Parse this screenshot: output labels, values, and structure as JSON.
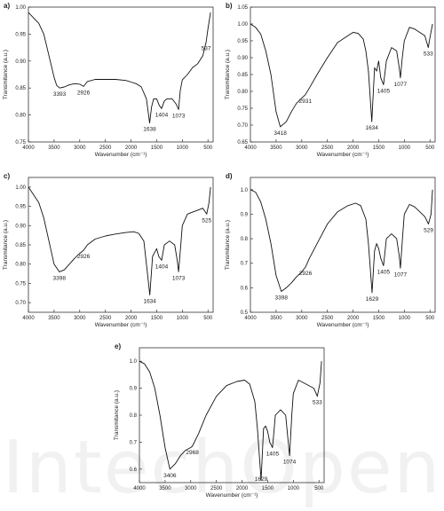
{
  "watermark_text": "IntechOpen",
  "chart_data": [
    {
      "type": "line",
      "panel_label": "a)",
      "xlabel": "Wavenumber (cm⁻¹)",
      "ylabel": "Transmitance (a.u.)",
      "xlim": [
        4000,
        400
      ],
      "ylim": [
        0.75,
        1.0
      ],
      "x_ticks": [
        4000,
        3500,
        3000,
        2500,
        2000,
        1500,
        1000,
        500
      ],
      "y_ticks": [
        0.75,
        0.8,
        0.85,
        0.9,
        0.95,
        1.0
      ],
      "y_tick_labels": [
        "0.75",
        "0.80",
        "0.85",
        "0.90",
        "0.95",
        "1.00"
      ],
      "series": [
        {
          "x": [
            4000,
            3900,
            3800,
            3700,
            3600,
            3500,
            3450,
            3393,
            3300,
            3200,
            3100,
            3000,
            2926,
            2850,
            2700,
            2500,
            2300,
            2100,
            2000,
            1900,
            1800,
            1700,
            1638,
            1600,
            1560,
            1500,
            1450,
            1404,
            1350,
            1300,
            1200,
            1120,
            1073,
            1040,
            1000,
            900,
            800,
            700,
            600,
            537,
            500,
            450
          ],
          "y": [
            0.99,
            0.98,
            0.97,
            0.95,
            0.91,
            0.87,
            0.855,
            0.85,
            0.852,
            0.856,
            0.858,
            0.857,
            0.853,
            0.862,
            0.866,
            0.866,
            0.866,
            0.864,
            0.861,
            0.858,
            0.852,
            0.83,
            0.785,
            0.815,
            0.83,
            0.83,
            0.818,
            0.812,
            0.826,
            0.83,
            0.83,
            0.82,
            0.81,
            0.845,
            0.865,
            0.875,
            0.888,
            0.895,
            0.91,
            0.935,
            0.96,
            0.99
          ]
        }
      ],
      "annotations": [
        {
          "text": "3393",
          "x": 3393,
          "y": 0.85
        },
        {
          "text": "2926",
          "x": 2926,
          "y": 0.853
        },
        {
          "text": "1638",
          "x": 1638,
          "y": 0.785
        },
        {
          "text": "1404",
          "x": 1404,
          "y": 0.812
        },
        {
          "text": "1073",
          "x": 1073,
          "y": 0.81
        },
        {
          "text": "537",
          "x": 537,
          "y": 0.935
        }
      ]
    },
    {
      "type": "line",
      "panel_label": "b)",
      "xlabel": "Wavenumber (cm⁻¹)",
      "ylabel": "Transmitance (a.u.)",
      "xlim": [
        4000,
        400
      ],
      "ylim": [
        0.65,
        1.05
      ],
      "x_ticks": [
        4000,
        3500,
        3000,
        2500,
        2000,
        1500,
        1000,
        500
      ],
      "y_ticks": [
        0.65,
        0.7,
        0.75,
        0.8,
        0.85,
        0.9,
        0.95,
        1.0,
        1.05
      ],
      "y_tick_labels": [
        "0.65",
        "0.70",
        "0.75",
        "0.80",
        "0.85",
        "0.90",
        "0.95",
        "1.00",
        "1.05"
      ],
      "series": [
        {
          "x": [
            4000,
            3900,
            3800,
            3700,
            3600,
            3500,
            3418,
            3300,
            3200,
            3100,
            3000,
            2931,
            2850,
            2700,
            2500,
            2300,
            2100,
            2000,
            1900,
            1800,
            1750,
            1700,
            1634,
            1580,
            1540,
            1500,
            1460,
            1405,
            1350,
            1250,
            1150,
            1100,
            1077,
            1040,
            1000,
            900,
            800,
            700,
            600,
            533,
            500,
            450
          ],
          "y": [
            1.0,
            0.99,
            0.97,
            0.92,
            0.85,
            0.74,
            0.695,
            0.71,
            0.74,
            0.765,
            0.78,
            0.79,
            0.81,
            0.85,
            0.9,
            0.945,
            0.965,
            0.975,
            0.972,
            0.955,
            0.92,
            0.86,
            0.71,
            0.87,
            0.86,
            0.89,
            0.84,
            0.82,
            0.89,
            0.93,
            0.92,
            0.87,
            0.84,
            0.9,
            0.95,
            0.99,
            0.985,
            0.975,
            0.965,
            0.93,
            0.96,
            1.0
          ]
        }
      ],
      "annotations": [
        {
          "text": "3418",
          "x": 3418,
          "y": 0.695
        },
        {
          "text": "2931",
          "x": 2931,
          "y": 0.79
        },
        {
          "text": "1634",
          "x": 1634,
          "y": 0.71
        },
        {
          "text": "1405",
          "x": 1405,
          "y": 0.82
        },
        {
          "text": "1077",
          "x": 1077,
          "y": 0.84
        },
        {
          "text": "533",
          "x": 533,
          "y": 0.93
        }
      ]
    },
    {
      "type": "line",
      "panel_label": "c)",
      "xlabel": "Wavenumber (cm⁻¹)",
      "ylabel": "Transmitance (a.u.)",
      "xlim": [
        4000,
        400
      ],
      "ylim": [
        0.675,
        1.025
      ],
      "x_ticks": [
        4000,
        3500,
        3000,
        2500,
        2000,
        1500,
        1000,
        500
      ],
      "y_ticks": [
        0.7,
        0.75,
        0.8,
        0.85,
        0.9,
        0.95,
        1.0
      ],
      "y_tick_labels": [
        "0.70",
        "0.75",
        "0.80",
        "0.85",
        "0.90",
        "0.95",
        "1.00"
      ],
      "series": [
        {
          "x": [
            4000,
            3900,
            3800,
            3700,
            3600,
            3500,
            3398,
            3300,
            3200,
            3100,
            3000,
            2926,
            2850,
            2700,
            2500,
            2300,
            2100,
            1950,
            1850,
            1750,
            1700,
            1634,
            1580,
            1540,
            1500,
            1460,
            1404,
            1350,
            1250,
            1150,
            1100,
            1073,
            1030,
            1000,
            900,
            800,
            700,
            600,
            525,
            480,
            450
          ],
          "y": [
            1.0,
            0.98,
            0.96,
            0.92,
            0.86,
            0.8,
            0.78,
            0.785,
            0.8,
            0.815,
            0.828,
            0.836,
            0.85,
            0.865,
            0.873,
            0.878,
            0.882,
            0.884,
            0.88,
            0.86,
            0.8,
            0.72,
            0.82,
            0.83,
            0.84,
            0.82,
            0.81,
            0.85,
            0.86,
            0.85,
            0.81,
            0.78,
            0.85,
            0.9,
            0.93,
            0.935,
            0.94,
            0.945,
            0.93,
            0.96,
            1.0
          ]
        }
      ],
      "annotations": [
        {
          "text": "3398",
          "x": 3398,
          "y": 0.78
        },
        {
          "text": "2926",
          "x": 2926,
          "y": 0.836
        },
        {
          "text": "1634",
          "x": 1634,
          "y": 0.72
        },
        {
          "text": "1404",
          "x": 1404,
          "y": 0.81
        },
        {
          "text": "1073",
          "x": 1073,
          "y": 0.78
        },
        {
          "text": "525",
          "x": 525,
          "y": 0.93
        }
      ]
    },
    {
      "type": "line",
      "panel_label": "d)",
      "xlabel": "Wavenumber (cm⁻¹)",
      "ylabel": "Transmitance (a.u.)",
      "xlim": [
        4000,
        400
      ],
      "ylim": [
        0.5,
        1.05
      ],
      "x_ticks": [
        4000,
        3500,
        3000,
        2500,
        2000,
        1500,
        1000,
        500
      ],
      "y_ticks": [
        0.5,
        0.6,
        0.7,
        0.8,
        0.9,
        1.0
      ],
      "y_tick_labels": [
        "0.5",
        "0.6",
        "0.7",
        "0.8",
        "0.9",
        "1.0"
      ],
      "series": [
        {
          "x": [
            4000,
            3900,
            3800,
            3700,
            3600,
            3500,
            3398,
            3300,
            3200,
            3100,
            3000,
            2926,
            2850,
            2700,
            2500,
            2300,
            2100,
            1950,
            1850,
            1750,
            1700,
            1629,
            1580,
            1540,
            1500,
            1460,
            1405,
            1350,
            1250,
            1150,
            1100,
            1077,
            1030,
            1000,
            900,
            800,
            700,
            600,
            529,
            480,
            450
          ],
          "y": [
            1.0,
            0.99,
            0.95,
            0.88,
            0.78,
            0.65,
            0.585,
            0.6,
            0.62,
            0.645,
            0.665,
            0.685,
            0.72,
            0.78,
            0.86,
            0.91,
            0.935,
            0.945,
            0.935,
            0.88,
            0.78,
            0.58,
            0.75,
            0.78,
            0.76,
            0.72,
            0.69,
            0.8,
            0.82,
            0.8,
            0.73,
            0.68,
            0.82,
            0.9,
            0.94,
            0.93,
            0.91,
            0.89,
            0.86,
            0.9,
            1.0
          ]
        }
      ],
      "annotations": [
        {
          "text": "3398",
          "x": 3398,
          "y": 0.585
        },
        {
          "text": "2926",
          "x": 2926,
          "y": 0.685
        },
        {
          "text": "1629",
          "x": 1629,
          "y": 0.58
        },
        {
          "text": "1405",
          "x": 1405,
          "y": 0.69
        },
        {
          "text": "1077",
          "x": 1077,
          "y": 0.68
        },
        {
          "text": "529",
          "x": 529,
          "y": 0.86
        }
      ]
    },
    {
      "type": "line",
      "panel_label": "e)",
      "xlabel": "Wavenumber (cm⁻¹)",
      "ylabel": "Transmitance (a.u.)",
      "xlim": [
        4000,
        400
      ],
      "ylim": [
        0.55,
        1.05
      ],
      "x_ticks": [
        4000,
        3500,
        3000,
        2500,
        2000,
        1500,
        1000,
        500
      ],
      "y_ticks": [
        0.6,
        0.7,
        0.8,
        0.9,
        1.0
      ],
      "y_tick_labels": [
        "0.6",
        "0.7",
        "0.8",
        "0.9",
        "1.0"
      ],
      "series": [
        {
          "x": [
            4000,
            3900,
            3800,
            3700,
            3600,
            3500,
            3406,
            3300,
            3200,
            3100,
            3000,
            2968,
            2850,
            2700,
            2500,
            2300,
            2100,
            1950,
            1850,
            1750,
            1700,
            1629,
            1580,
            1540,
            1500,
            1460,
            1405,
            1350,
            1250,
            1150,
            1100,
            1074,
            1030,
            1000,
            900,
            800,
            700,
            600,
            533,
            480,
            450
          ],
          "y": [
            1.0,
            0.99,
            0.96,
            0.9,
            0.8,
            0.68,
            0.6,
            0.62,
            0.65,
            0.67,
            0.68,
            0.685,
            0.73,
            0.8,
            0.87,
            0.91,
            0.925,
            0.93,
            0.915,
            0.85,
            0.75,
            0.56,
            0.75,
            0.76,
            0.74,
            0.7,
            0.68,
            0.8,
            0.82,
            0.8,
            0.7,
            0.65,
            0.8,
            0.88,
            0.93,
            0.92,
            0.91,
            0.9,
            0.87,
            0.92,
            1.0
          ]
        }
      ],
      "annotations": [
        {
          "text": "3406",
          "x": 3406,
          "y": 0.6
        },
        {
          "text": "2968",
          "x": 2968,
          "y": 0.685
        },
        {
          "text": "1629",
          "x": 1629,
          "y": 0.56
        },
        {
          "text": "1405",
          "x": 1405,
          "y": 0.68
        },
        {
          "text": "1074",
          "x": 1074,
          "y": 0.65
        },
        {
          "text": "533",
          "x": 533,
          "y": 0.87
        }
      ]
    }
  ]
}
